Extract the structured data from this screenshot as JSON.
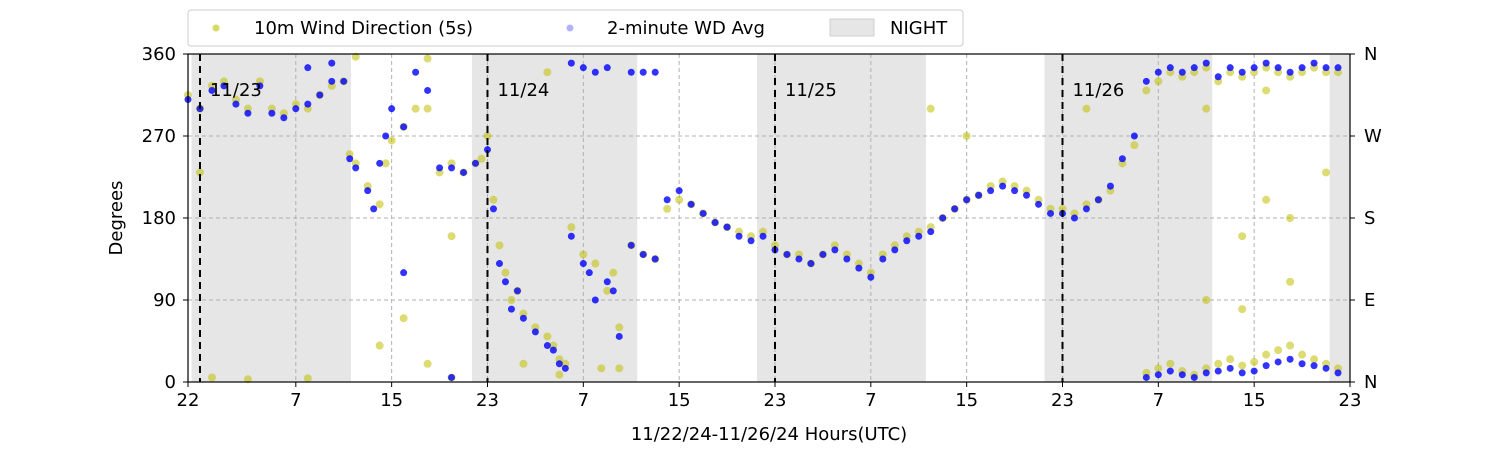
{
  "chart_data": {
    "type": "scatter",
    "xlabel": "11/22/24-11/26/24  Hours(UTC)",
    "ylabel": "Degrees",
    "x_unit": "hours (UTC) from 11/22 22:00",
    "xlim": [
      0,
      97
    ],
    "ylim": [
      0,
      360
    ],
    "x_ticks": [
      {
        "value": 0,
        "label": "22"
      },
      {
        "value": 9,
        "label": "7"
      },
      {
        "value": 17,
        "label": "15"
      },
      {
        "value": 25,
        "label": "23"
      },
      {
        "value": 33,
        "label": "7"
      },
      {
        "value": 41,
        "label": "15"
      },
      {
        "value": 49,
        "label": "23"
      },
      {
        "value": 57,
        "label": "7"
      },
      {
        "value": 65,
        "label": "15"
      },
      {
        "value": 73,
        "label": "23"
      },
      {
        "value": 81,
        "label": "7"
      },
      {
        "value": 89,
        "label": "15"
      },
      {
        "value": 97,
        "label": "23"
      }
    ],
    "y_ticks": [
      0,
      90,
      180,
      270,
      360
    ],
    "y2_ticks": [
      {
        "value": 0,
        "label": "N"
      },
      {
        "value": 90,
        "label": "E"
      },
      {
        "value": 180,
        "label": "S"
      },
      {
        "value": 270,
        "label": "W"
      },
      {
        "value": 360,
        "label": "N"
      }
    ],
    "grid": true,
    "legend_position": "top",
    "day_markers": [
      {
        "x": 1,
        "label": "11/23"
      },
      {
        "x": 25,
        "label": "11/24"
      },
      {
        "x": 49,
        "label": "11/25"
      },
      {
        "x": 73,
        "label": "11/26"
      }
    ],
    "night_spans": [
      [
        0.3,
        13.6
      ],
      [
        23.7,
        37.5
      ],
      [
        47.5,
        61.6
      ],
      [
        71.5,
        85.5
      ],
      [
        95.3,
        97
      ]
    ],
    "series": [
      {
        "name": "10m Wind Direction (5s)",
        "color": "#bfbf00",
        "marker": "dot",
        "points": [
          [
            0,
            315
          ],
          [
            1,
            300
          ],
          [
            2,
            325
          ],
          [
            3,
            330
          ],
          [
            4,
            310
          ],
          [
            5,
            300
          ],
          [
            6,
            330
          ],
          [
            7,
            300
          ],
          [
            8,
            295
          ],
          [
            9,
            305
          ],
          [
            10,
            300
          ],
          [
            11,
            315
          ],
          [
            12,
            325
          ],
          [
            13,
            330
          ],
          [
            13.5,
            250
          ],
          [
            14,
            240
          ],
          [
            15,
            215
          ],
          [
            16,
            195
          ],
          [
            16.5,
            240
          ],
          [
            17,
            265
          ],
          [
            18,
            280
          ],
          [
            19,
            300
          ],
          [
            20,
            300
          ],
          [
            21,
            230
          ],
          [
            22,
            240
          ],
          [
            23,
            230
          ],
          [
            24,
            240
          ],
          [
            24.5,
            245
          ],
          [
            25,
            270
          ],
          [
            25.5,
            200
          ],
          [
            26,
            150
          ],
          [
            26.5,
            120
          ],
          [
            27,
            90
          ],
          [
            27.5,
            100
          ],
          [
            28,
            75
          ],
          [
            29,
            60
          ],
          [
            30,
            50
          ],
          [
            30.5,
            40
          ],
          [
            31,
            25
          ],
          [
            31.5,
            20
          ],
          [
            32,
            170
          ],
          [
            33,
            140
          ],
          [
            34,
            130
          ],
          [
            34.5,
            15
          ],
          [
            35,
            100
          ],
          [
            35.5,
            120
          ],
          [
            36,
            60
          ],
          [
            37,
            150
          ],
          [
            38,
            140
          ],
          [
            39,
            135
          ],
          [
            40,
            190
          ],
          [
            41,
            200
          ],
          [
            42,
            195
          ],
          [
            43,
            185
          ],
          [
            44,
            175
          ],
          [
            45,
            170
          ],
          [
            46,
            165
          ],
          [
            47,
            160
          ],
          [
            48,
            165
          ],
          [
            49,
            150
          ],
          [
            50,
            140
          ],
          [
            51,
            140
          ],
          [
            52,
            130
          ],
          [
            53,
            140
          ],
          [
            54,
            150
          ],
          [
            55,
            140
          ],
          [
            56,
            130
          ],
          [
            57,
            120
          ],
          [
            58,
            140
          ],
          [
            59,
            150
          ],
          [
            60,
            160
          ],
          [
            61,
            165
          ],
          [
            62,
            170
          ],
          [
            63,
            180
          ],
          [
            64,
            190
          ],
          [
            65,
            200
          ],
          [
            66,
            205
          ],
          [
            67,
            215
          ],
          [
            68,
            220
          ],
          [
            69,
            215
          ],
          [
            70,
            210
          ],
          [
            71,
            200
          ],
          [
            72,
            190
          ],
          [
            73,
            190
          ],
          [
            74,
            185
          ],
          [
            75,
            195
          ],
          [
            76,
            200
          ],
          [
            77,
            210
          ],
          [
            78,
            240
          ],
          [
            79,
            260
          ],
          [
            80,
            320
          ],
          [
            81,
            330
          ],
          [
            82,
            340
          ],
          [
            83,
            335
          ],
          [
            84,
            340
          ],
          [
            85,
            345
          ],
          [
            86,
            330
          ],
          [
            87,
            340
          ],
          [
            88,
            335
          ],
          [
            89,
            340
          ],
          [
            90,
            345
          ],
          [
            91,
            340
          ],
          [
            92,
            335
          ],
          [
            93,
            340
          ],
          [
            94,
            345
          ],
          [
            95,
            340
          ],
          [
            96,
            340
          ],
          [
            80,
            10
          ],
          [
            81,
            15
          ],
          [
            82,
            20
          ],
          [
            83,
            12
          ],
          [
            84,
            8
          ],
          [
            85,
            15
          ],
          [
            86,
            20
          ],
          [
            87,
            25
          ],
          [
            88,
            18
          ],
          [
            89,
            22
          ],
          [
            90,
            30
          ],
          [
            91,
            35
          ],
          [
            92,
            40
          ],
          [
            93,
            30
          ],
          [
            94,
            25
          ],
          [
            95,
            20
          ],
          [
            96,
            15
          ],
          [
            2,
            5
          ],
          [
            5,
            3
          ],
          [
            10,
            4
          ],
          [
            16,
            40
          ],
          [
            18,
            70
          ],
          [
            20,
            20
          ],
          [
            22,
            5
          ],
          [
            14,
            357
          ],
          [
            20,
            355
          ],
          [
            1,
            230
          ],
          [
            28,
            20
          ],
          [
            31,
            8
          ],
          [
            22,
            160
          ],
          [
            30,
            340
          ],
          [
            36,
            15
          ],
          [
            65,
            270
          ],
          [
            62,
            300
          ],
          [
            75,
            300
          ],
          [
            85,
            90
          ],
          [
            88,
            80
          ],
          [
            92,
            110
          ],
          [
            88,
            160
          ],
          [
            90,
            200
          ],
          [
            92,
            180
          ],
          [
            95,
            230
          ],
          [
            85,
            300
          ],
          [
            90,
            320
          ]
        ]
      },
      {
        "name": "2-minute WD Avg",
        "color": "#0000ff",
        "marker": "dot",
        "points": [
          [
            0,
            310
          ],
          [
            1,
            300
          ],
          [
            2,
            320
          ],
          [
            3,
            325
          ],
          [
            4,
            305
          ],
          [
            5,
            295
          ],
          [
            6,
            325
          ],
          [
            7,
            295
          ],
          [
            8,
            290
          ],
          [
            9,
            300
          ],
          [
            10,
            305
          ],
          [
            11,
            315
          ],
          [
            12,
            330
          ],
          [
            13,
            330
          ],
          [
            13.5,
            245
          ],
          [
            14,
            235
          ],
          [
            15,
            210
          ],
          [
            15.5,
            190
          ],
          [
            16,
            240
          ],
          [
            16.5,
            270
          ],
          [
            17,
            300
          ],
          [
            18,
            280
          ],
          [
            19,
            340
          ],
          [
            20,
            320
          ],
          [
            21,
            235
          ],
          [
            22,
            235
          ],
          [
            23,
            230
          ],
          [
            24,
            240
          ],
          [
            25,
            255
          ],
          [
            25.5,
            190
          ],
          [
            26,
            130
          ],
          [
            26.5,
            110
          ],
          [
            27,
            80
          ],
          [
            27.5,
            100
          ],
          [
            28,
            70
          ],
          [
            29,
            55
          ],
          [
            30,
            40
          ],
          [
            30.5,
            35
          ],
          [
            31,
            20
          ],
          [
            31.5,
            15
          ],
          [
            32,
            160
          ],
          [
            33,
            130
          ],
          [
            33.5,
            120
          ],
          [
            34,
            90
          ],
          [
            35,
            110
          ],
          [
            35.5,
            100
          ],
          [
            36,
            50
          ],
          [
            37,
            150
          ],
          [
            38,
            140
          ],
          [
            39,
            135
          ],
          [
            40,
            200
          ],
          [
            41,
            210
          ],
          [
            42,
            195
          ],
          [
            43,
            185
          ],
          [
            44,
            175
          ],
          [
            45,
            170
          ],
          [
            46,
            160
          ],
          [
            47,
            155
          ],
          [
            48,
            160
          ],
          [
            49,
            145
          ],
          [
            50,
            140
          ],
          [
            51,
            135
          ],
          [
            52,
            130
          ],
          [
            53,
            140
          ],
          [
            54,
            145
          ],
          [
            55,
            135
          ],
          [
            56,
            125
          ],
          [
            57,
            115
          ],
          [
            58,
            135
          ],
          [
            59,
            145
          ],
          [
            60,
            155
          ],
          [
            61,
            160
          ],
          [
            62,
            165
          ],
          [
            63,
            180
          ],
          [
            64,
            190
          ],
          [
            65,
            200
          ],
          [
            66,
            205
          ],
          [
            67,
            210
          ],
          [
            68,
            215
          ],
          [
            69,
            210
          ],
          [
            70,
            205
          ],
          [
            71,
            195
          ],
          [
            72,
            185
          ],
          [
            73,
            185
          ],
          [
            74,
            180
          ],
          [
            75,
            190
          ],
          [
            76,
            200
          ],
          [
            77,
            215
          ],
          [
            78,
            245
          ],
          [
            79,
            270
          ],
          [
            80,
            330
          ],
          [
            81,
            340
          ],
          [
            82,
            345
          ],
          [
            83,
            340
          ],
          [
            84,
            345
          ],
          [
            85,
            350
          ],
          [
            86,
            335
          ],
          [
            87,
            345
          ],
          [
            88,
            340
          ],
          [
            89,
            345
          ],
          [
            90,
            350
          ],
          [
            91,
            345
          ],
          [
            92,
            340
          ],
          [
            93,
            345
          ],
          [
            94,
            350
          ],
          [
            95,
            345
          ],
          [
            96,
            345
          ],
          [
            80,
            5
          ],
          [
            81,
            8
          ],
          [
            82,
            12
          ],
          [
            83,
            8
          ],
          [
            84,
            5
          ],
          [
            85,
            10
          ],
          [
            86,
            12
          ],
          [
            87,
            15
          ],
          [
            88,
            10
          ],
          [
            89,
            12
          ],
          [
            90,
            18
          ],
          [
            91,
            22
          ],
          [
            92,
            25
          ],
          [
            93,
            20
          ],
          [
            94,
            18
          ],
          [
            95,
            15
          ],
          [
            96,
            10
          ],
          [
            32,
            350
          ],
          [
            33,
            345
          ],
          [
            34,
            340
          ],
          [
            35,
            345
          ],
          [
            37,
            340
          ],
          [
            38,
            340
          ],
          [
            39,
            340
          ],
          [
            10,
            345
          ],
          [
            12,
            350
          ],
          [
            18,
            120
          ],
          [
            22,
            5
          ]
        ]
      }
    ]
  }
}
